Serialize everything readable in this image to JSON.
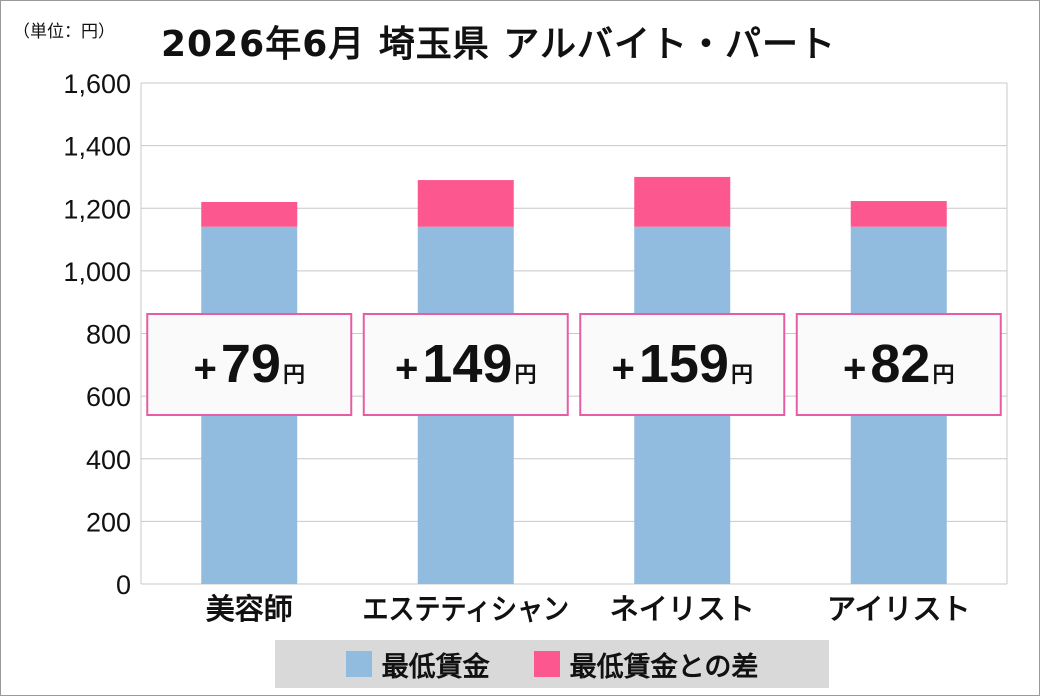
{
  "unit_label": "（単位：円）",
  "title": "2026年6月 埼玉県 アルバイト・パート",
  "colors": {
    "base": "#91bcdf",
    "diff": "#fc578f",
    "callout_border": "#e75ca3",
    "callout_bg": "#fbfafb",
    "grid": "#c8c8c8"
  },
  "legend": {
    "base_label": "最低賃金",
    "diff_label": "最低賃金との差"
  },
  "chart_data": {
    "type": "bar",
    "stacked": true,
    "categories": [
      "美容師",
      "エステティシャン",
      "ネイリスト",
      "アイリスト"
    ],
    "series": [
      {
        "name": "最低賃金",
        "values": [
          1141,
          1141,
          1141,
          1141
        ]
      },
      {
        "name": "最低賃金との差",
        "values": [
          79,
          149,
          159,
          82
        ]
      }
    ],
    "callouts": [
      {
        "prefix": "+",
        "number": "79",
        "unit": "円"
      },
      {
        "prefix": "+",
        "number": "149",
        "unit": "円"
      },
      {
        "prefix": "+",
        "number": "159",
        "unit": "円"
      },
      {
        "prefix": "+",
        "number": "82",
        "unit": "円"
      }
    ],
    "ylim": [
      0,
      1600
    ],
    "yticks": [
      0,
      200,
      400,
      600,
      800,
      1000,
      1200,
      1400,
      1600
    ],
    "ytick_labels": [
      "0",
      "200",
      "400",
      "600",
      "800",
      "1,000",
      "1,200",
      "1,400",
      "1,600"
    ],
    "grid": true,
    "legend_position": "bottom"
  }
}
